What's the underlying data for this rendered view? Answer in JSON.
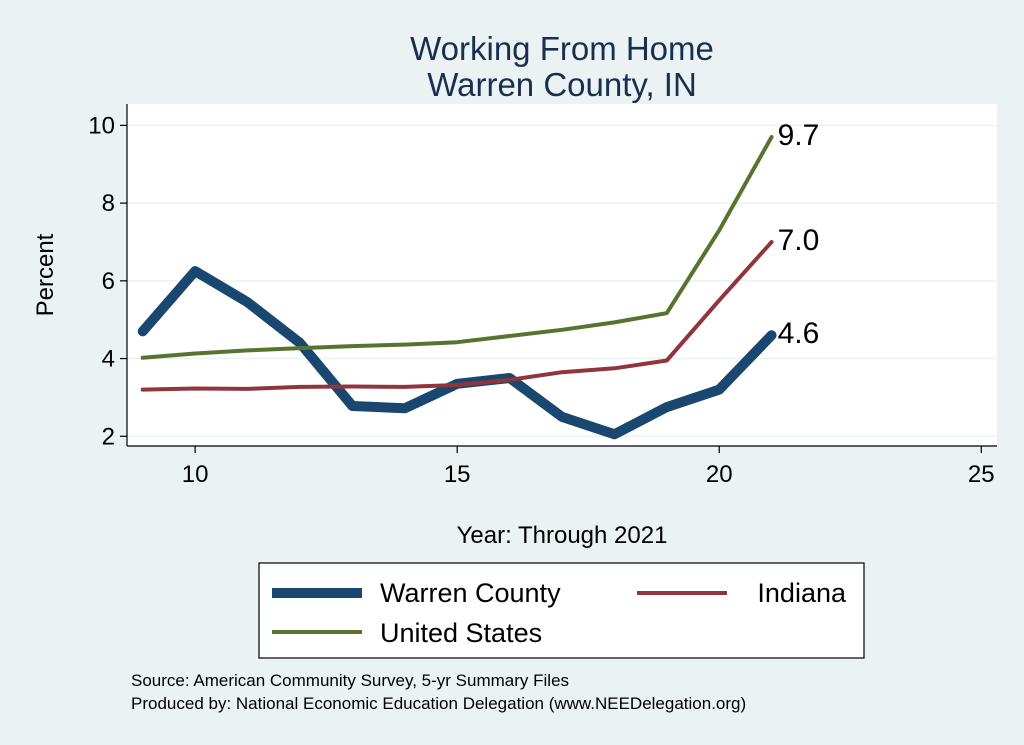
{
  "colors": {
    "background": "#eaf2f3",
    "plot_background": "#ffffff",
    "grid": "#eaf2f3",
    "warren_county": "#1a476f",
    "indiana": "#90353b",
    "united_states": "#55752f"
  },
  "chart_data": {
    "type": "line",
    "title": [
      "Working From Home",
      "Warren County, IN"
    ],
    "xlabel": "Year: Through 2021",
    "ylabel": "Percent",
    "xlim": [
      8.7,
      25.3
    ],
    "ylim": [
      1.75,
      10.55
    ],
    "xticks": [
      10,
      15,
      20,
      25
    ],
    "yticks": [
      2,
      4,
      6,
      8,
      10
    ],
    "grid": true,
    "legend_position": "bottom",
    "x": [
      9,
      10,
      11,
      12,
      13,
      14,
      15,
      16,
      17,
      18,
      19,
      20,
      21
    ],
    "series": [
      {
        "name": "Warren County",
        "color_key": "warren_county",
        "width": 10,
        "values": [
          4.7,
          6.25,
          5.45,
          4.4,
          2.78,
          2.72,
          3.35,
          3.5,
          2.5,
          2.05,
          2.75,
          3.2,
          4.6
        ],
        "end_label": "4.6"
      },
      {
        "name": "Indiana",
        "color_key": "indiana",
        "width": 4,
        "values": [
          3.2,
          3.23,
          3.22,
          3.27,
          3.28,
          3.27,
          3.32,
          3.45,
          3.65,
          3.75,
          3.95,
          5.5,
          7.0
        ],
        "end_label": "7.0"
      },
      {
        "name": "United States",
        "color_key": "united_states",
        "width": 4,
        "values": [
          4.02,
          4.13,
          4.21,
          4.27,
          4.32,
          4.36,
          4.42,
          4.58,
          4.74,
          4.93,
          5.17,
          7.3,
          9.7
        ],
        "end_label": "9.7"
      }
    ]
  },
  "legend": {
    "items": [
      {
        "label": "Warren County",
        "color_key": "warren_county",
        "width": 10
      },
      {
        "label": "Indiana",
        "color_key": "indiana",
        "width": 4
      },
      {
        "label": "United States",
        "color_key": "united_states",
        "width": 4
      }
    ]
  },
  "notes": {
    "source": "Source: American Community Survey, 5-yr Summary Files",
    "produced_by": "Produced by: National Economic Education Delegation (www.NEEDelegation.org)"
  }
}
